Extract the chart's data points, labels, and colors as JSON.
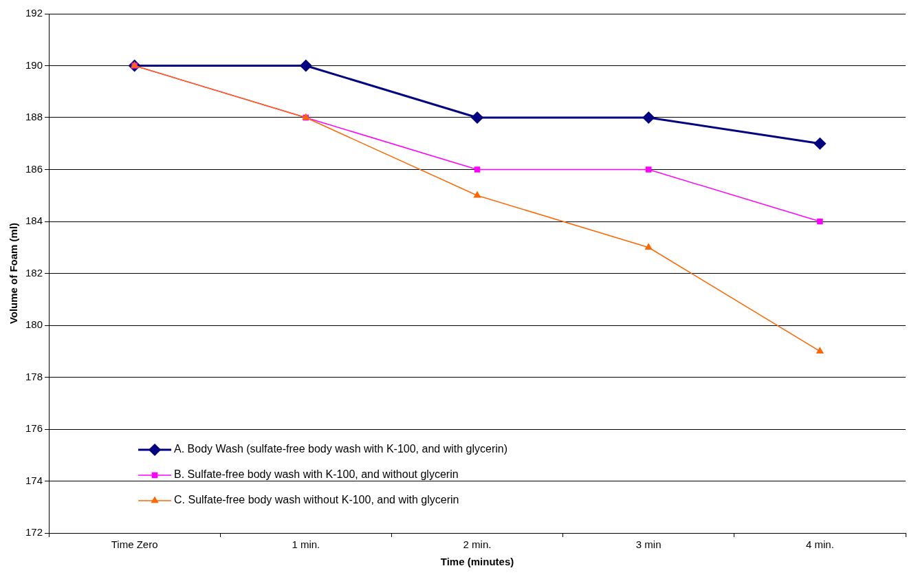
{
  "chart_data": {
    "type": "line",
    "xlabel": "Time (minutes)",
    "ylabel": "Volume of Foam (ml)",
    "categories": [
      "Time Zero",
      "1 min.",
      "2 min.",
      "3 min",
      "4 min."
    ],
    "series": [
      {
        "name": "A. Body Wash (sulfate-free body wash with K-100, and with glycerin)",
        "color": "#000080",
        "marker": "diamond",
        "values": [
          190,
          190,
          188,
          188,
          187
        ]
      },
      {
        "name": "B. Sulfate-free body wash with K-100, and without glycerin",
        "color": "#ff00ff",
        "marker": "square",
        "values": [
          190,
          188,
          186,
          186,
          184
        ]
      },
      {
        "name": "C. Sulfate-free body wash without K-100, and with glycerin",
        "color": "#ff6600",
        "marker": "triangle",
        "values": [
          190,
          188,
          185,
          183,
          179
        ]
      }
    ],
    "ylim": [
      172,
      192
    ],
    "yticks": [
      172,
      174,
      176,
      178,
      180,
      182,
      184,
      186,
      188,
      190,
      192
    ],
    "grid": "y",
    "legend": "bottom left",
    "line_style": "solid"
  }
}
